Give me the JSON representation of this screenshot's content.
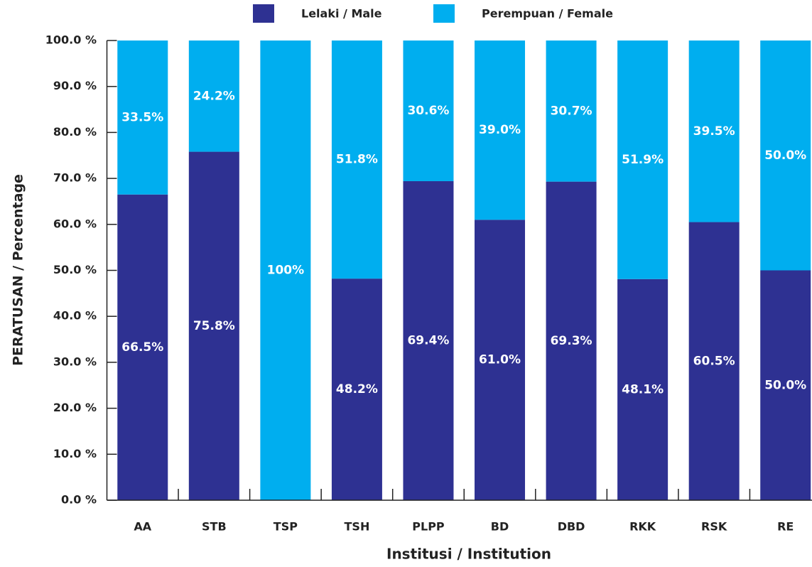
{
  "chart_data": {
    "type": "stacked_bar",
    "x_label": "Institusi / Institution",
    "y_label": "PERATUSAN / Percentage",
    "categories": [
      "AA",
      "STB",
      "TSP",
      "TSH",
      "PLPP",
      "BD",
      "DBD",
      "RKK",
      "RSK",
      "RE"
    ],
    "series": [
      {
        "name": "Lelaki / Male",
        "color": "#2e3192",
        "values": [
          66.5,
          75.8,
          0,
          48.2,
          69.4,
          61.0,
          69.3,
          48.1,
          60.5,
          50.0
        ],
        "value_labels": [
          "66.5%",
          "75.8%",
          null,
          "48.2%",
          "69.4%",
          "61.0%",
          "69.3%",
          "48.1%",
          "60.5%",
          "50.0%"
        ]
      },
      {
        "name": "Perempuan / Female",
        "color": "#00aeef",
        "values": [
          33.5,
          24.2,
          100,
          51.8,
          30.6,
          39.0,
          30.7,
          51.9,
          39.5,
          50.0
        ],
        "value_labels": [
          "33.5%",
          "24.2%",
          "100%",
          "51.8%",
          "30.6%",
          "39.0%",
          "30.7%",
          "51.9%",
          "39.5%",
          "50.0%"
        ]
      }
    ],
    "ylim": [
      0,
      100
    ],
    "yticks": [
      {
        "value": 0,
        "label": "0.0 %"
      },
      {
        "value": 10,
        "label": "10.0 %"
      },
      {
        "value": 20,
        "label": "20.0 %"
      },
      {
        "value": 30,
        "label": "30.0 %"
      },
      {
        "value": 40,
        "label": "40.0 %"
      },
      {
        "value": 50,
        "label": "50.0 %"
      },
      {
        "value": 60,
        "label": "60.0 %"
      },
      {
        "value": 70,
        "label": "70.0 %"
      },
      {
        "value": 80,
        "label": "80.0 %"
      },
      {
        "value": 90,
        "label": "90.0 %"
      },
      {
        "value": 100,
        "label": "100.0 %"
      }
    ],
    "legend": "top"
  }
}
